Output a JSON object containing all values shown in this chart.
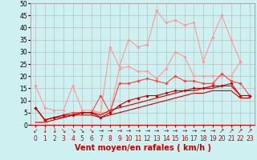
{
  "x": [
    0,
    1,
    2,
    3,
    4,
    5,
    6,
    7,
    8,
    9,
    10,
    11,
    12,
    13,
    14,
    15,
    16,
    17,
    18,
    19,
    20,
    21,
    22,
    23
  ],
  "series": [
    {
      "color": "#ff9999",
      "linewidth": 0.8,
      "marker": "D",
      "markersize": 1.8,
      "y": [
        16,
        7,
        6,
        6,
        16,
        6,
        6,
        5,
        32,
        24,
        35,
        32,
        33,
        47,
        42,
        43,
        41,
        42,
        26,
        36,
        45,
        35,
        26,
        null
      ]
    },
    {
      "color": "#ff9999",
      "linewidth": 0.8,
      "marker": "D",
      "markersize": 1.8,
      "y": [
        7,
        2,
        3,
        4,
        5,
        5,
        5,
        5,
        5,
        23,
        24,
        22,
        22,
        19,
        23,
        30,
        28,
        20,
        20,
        20,
        20,
        20,
        26,
        null
      ]
    },
    {
      "color": "#ff4444",
      "linewidth": 0.8,
      "marker": "D",
      "markersize": 1.8,
      "y": [
        7,
        2,
        3,
        4,
        5,
        5,
        5,
        12,
        5,
        17,
        17,
        18,
        19,
        18,
        17,
        20,
        18,
        18,
        17,
        17,
        21,
        18,
        17,
        12
      ]
    },
    {
      "color": "#cc0000",
      "linewidth": 0.8,
      "marker": "D",
      "markersize": 1.8,
      "y": [
        7,
        2,
        3,
        4,
        4,
        5,
        5,
        3,
        5,
        8,
        10,
        11,
        12,
        12,
        13,
        14,
        14,
        15,
        15,
        16,
        16,
        17,
        12,
        12
      ]
    },
    {
      "color": "#cc0000",
      "linewidth": 0.8,
      "marker": null,
      "markersize": 0,
      "y": [
        7,
        2,
        3,
        3,
        4,
        5,
        5,
        4,
        6,
        7,
        8,
        9,
        10,
        11,
        12,
        13,
        14,
        14,
        15,
        15,
        16,
        16,
        12,
        12
      ]
    },
    {
      "color": "#cc0000",
      "linewidth": 0.8,
      "marker": null,
      "markersize": 0,
      "y": [
        1,
        1,
        2,
        3,
        4,
        4,
        4,
        3,
        4,
        5,
        6,
        7,
        8,
        9,
        10,
        11,
        12,
        13,
        13,
        14,
        14,
        14,
        11,
        11
      ]
    }
  ],
  "xlim": [
    -0.5,
    23.5
  ],
  "ylim": [
    0,
    50
  ],
  "yticks": [
    0,
    5,
    10,
    15,
    20,
    25,
    30,
    35,
    40,
    45,
    50
  ],
  "xtick_labels": [
    "0",
    "1",
    "2",
    "3",
    "4",
    "5",
    "6",
    "7",
    "8",
    "9",
    "10",
    "11",
    "12",
    "13",
    "14",
    "15",
    "16",
    "17",
    "18",
    "19",
    "20",
    "21",
    "22",
    "23"
  ],
  "arrow_labels": [
    "↙",
    "↓",
    "↓",
    "↘",
    "↘",
    "↘",
    "↘",
    "→",
    "→",
    "→",
    "→",
    "→",
    "→",
    "→",
    "→",
    "→",
    "→",
    "→",
    "→",
    "→",
    "↗",
    "↗",
    "↗",
    "↗"
  ],
  "xlabel": "Vent moyen/en rafales ( km/h )",
  "background_color": "#cff0f0",
  "grid_color": "#aaaaaa",
  "line_color": "#cc0000",
  "tick_fontsize": 5.5,
  "arrow_fontsize": 5.0,
  "label_fontsize": 7.0
}
